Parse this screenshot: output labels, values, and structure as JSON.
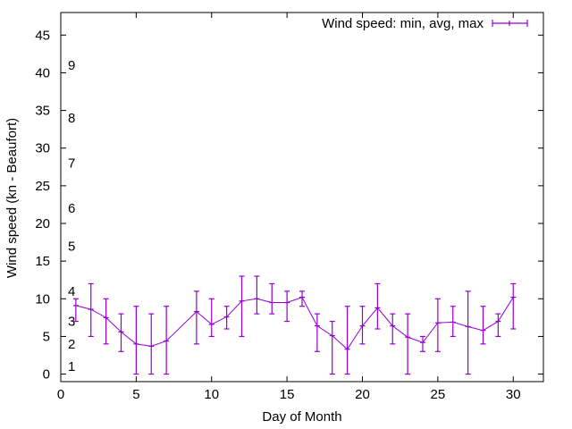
{
  "chart_data": {
    "type": "line",
    "title": "",
    "xlabel": "Day of Month",
    "ylabel": "Wind speed (kn - Beaufort)",
    "xlim": [
      0,
      32
    ],
    "ylim": [
      -1,
      48
    ],
    "xticks": [
      0,
      5,
      10,
      15,
      20,
      25,
      30
    ],
    "yticks": [
      0,
      5,
      10,
      15,
      20,
      25,
      30,
      35,
      40,
      45
    ],
    "grid": false,
    "legend": {
      "position": "top-right",
      "entries": [
        "Wind speed: min, avg, max"
      ]
    },
    "series": [
      {
        "name": "Wind speed: min, avg, max",
        "color": "#9400d3",
        "style": "lines with errorbars",
        "points": [
          {
            "day": 1,
            "min": 7,
            "avg": 9.1,
            "max": 10
          },
          {
            "day": 2,
            "min": 5,
            "avg": 8.6,
            "max": 12
          },
          {
            "day": 3,
            "min": 4,
            "avg": 7.5,
            "max": 10
          },
          {
            "day": 4,
            "min": 3,
            "avg": 5.6,
            "max": 8
          },
          {
            "day": 5,
            "min": 0,
            "avg": 4.0,
            "max": 9
          },
          {
            "day": 6,
            "min": 0,
            "avg": 3.7,
            "max": 8
          },
          {
            "day": 7,
            "min": 0,
            "avg": 4.4,
            "max": 9
          },
          {
            "day": 9,
            "min": 4,
            "avg": 8.3,
            "max": 11
          },
          {
            "day": 10,
            "min": 5,
            "avg": 6.6,
            "max": 10
          },
          {
            "day": 11,
            "min": 6,
            "avg": 7.6,
            "max": 9
          },
          {
            "day": 12,
            "min": 5,
            "avg": 9.7,
            "max": 13
          },
          {
            "day": 13,
            "min": 8,
            "avg": 10.0,
            "max": 13
          },
          {
            "day": 14,
            "min": 8,
            "avg": 9.5,
            "max": 12
          },
          {
            "day": 15,
            "min": 7,
            "avg": 9.5,
            "max": 11
          },
          {
            "day": 16,
            "min": 9,
            "avg": 10.2,
            "max": 11
          },
          {
            "day": 17,
            "min": 3,
            "avg": 6.4,
            "max": 8
          },
          {
            "day": 18,
            "min": 0,
            "avg": 5.1,
            "max": 7
          },
          {
            "day": 19,
            "min": 0,
            "avg": 3.3,
            "max": 9
          },
          {
            "day": 20,
            "min": 4,
            "avg": 6.4,
            "max": 9
          },
          {
            "day": 21,
            "min": 6,
            "avg": 8.8,
            "max": 12
          },
          {
            "day": 22,
            "min": 4,
            "avg": 6.4,
            "max": 8
          },
          {
            "day": 23,
            "min": 0,
            "avg": 4.9,
            "max": 8
          },
          {
            "day": 24,
            "min": 3,
            "avg": 4.2,
            "max": 5
          },
          {
            "day": 25,
            "min": 3,
            "avg": 6.8,
            "max": 10
          },
          {
            "day": 26,
            "min": 5,
            "avg": 6.9,
            "max": 9
          },
          {
            "day": 27,
            "min": 0,
            "avg": 6.3,
            "max": 11
          },
          {
            "day": 28,
            "min": 4,
            "avg": 5.8,
            "max": 9
          },
          {
            "day": 29,
            "min": 5,
            "avg": 7.0,
            "max": 8
          },
          {
            "day": 30,
            "min": 6,
            "avg": 10.2,
            "max": 12
          }
        ]
      }
    ],
    "annotations": {
      "beaufort_scale": [
        {
          "label": "1",
          "knots": 1
        },
        {
          "label": "2",
          "knots": 4
        },
        {
          "label": "3",
          "knots": 7
        },
        {
          "label": "4",
          "knots": 11
        },
        {
          "label": "5",
          "knots": 17
        },
        {
          "label": "6",
          "knots": 22
        },
        {
          "label": "7",
          "knots": 28
        },
        {
          "label": "8",
          "knots": 34
        },
        {
          "label": "9",
          "knots": 41
        }
      ]
    }
  }
}
